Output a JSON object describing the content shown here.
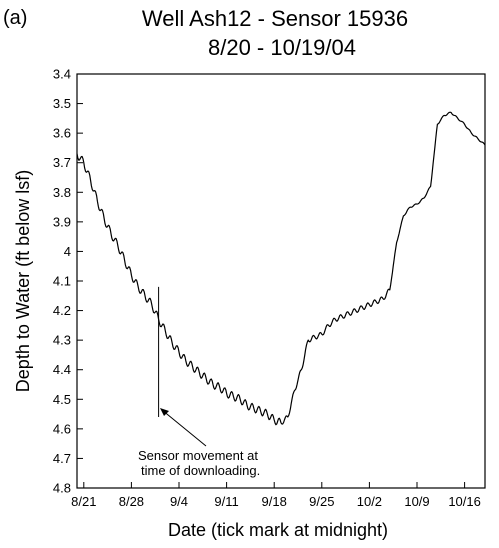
{
  "panel_label": "(a)",
  "chart_data": {
    "type": "line",
    "title": "Well Ash12 - Sensor 15936",
    "subtitle": "8/20 - 10/19/04",
    "xlabel": "Date (tick mark at midnight)",
    "ylabel": "Depth to Water (ft below lsf)",
    "y_axis_inverted": true,
    "ylim": [
      3.4,
      4.8
    ],
    "y_ticks": [
      3.4,
      3.5,
      3.6,
      3.7,
      3.8,
      3.9,
      4,
      4.1,
      4.2,
      4.3,
      4.4,
      4.5,
      4.6,
      4.7,
      4.8
    ],
    "y_tick_labels": [
      "3.4",
      "3.5",
      "3.6",
      "3.7",
      "3.8",
      "3.9",
      "4",
      "4.1",
      "4.2",
      "4.3",
      "4.4",
      "4.5",
      "4.6",
      "4.7",
      "4.8"
    ],
    "xlim": [
      "2004-08-20",
      "2004-10-19"
    ],
    "x_ticks": [
      "2004-08-21",
      "2004-08-28",
      "2004-09-04",
      "2004-09-11",
      "2004-09-18",
      "2004-09-25",
      "2004-10-02",
      "2004-10-09",
      "2004-10-16"
    ],
    "x_tick_labels": [
      "8/21",
      "8/28",
      "9/4",
      "9/11",
      "9/18",
      "9/25",
      "10/2",
      "10/9",
      "10/16"
    ],
    "grid": false,
    "series": [
      {
        "line_color": "#000000",
        "x": [
          "2004-08-20",
          "2004-08-21",
          "2004-08-22",
          "2004-08-23",
          "2004-08-24",
          "2004-08-25",
          "2004-08-26",
          "2004-08-27",
          "2004-08-28",
          "2004-08-29",
          "2004-08-30",
          "2004-08-31",
          "2004-09-01",
          "2004-09-02",
          "2004-09-03",
          "2004-09-04",
          "2004-09-05",
          "2004-09-06",
          "2004-09-07",
          "2004-09-08",
          "2004-09-09",
          "2004-09-10",
          "2004-09-11",
          "2004-09-12",
          "2004-09-13",
          "2004-09-14",
          "2004-09-15",
          "2004-09-16",
          "2004-09-17",
          "2004-09-18",
          "2004-09-19",
          "2004-09-20",
          "2004-09-21",
          "2004-09-22",
          "2004-09-23",
          "2004-09-24",
          "2004-09-25",
          "2004-09-26",
          "2004-09-27",
          "2004-09-28",
          "2004-09-29",
          "2004-09-30",
          "2004-10-01",
          "2004-10-02",
          "2004-10-03",
          "2004-10-04",
          "2004-10-05",
          "2004-10-06",
          "2004-10-07",
          "2004-10-08",
          "2004-10-09",
          "2004-10-10",
          "2004-10-11",
          "2004-10-12",
          "2004-10-13",
          "2004-10-14",
          "2004-10-15",
          "2004-10-16",
          "2004-10-17",
          "2004-10-18",
          "2004-10-19"
        ],
        "y": [
          3.67,
          3.7,
          3.76,
          3.83,
          3.89,
          3.94,
          3.98,
          4.03,
          4.08,
          4.12,
          4.15,
          4.18,
          4.23,
          4.27,
          4.31,
          4.34,
          4.37,
          4.39,
          4.41,
          4.43,
          4.45,
          4.46,
          4.48,
          4.49,
          4.5,
          4.52,
          4.53,
          4.54,
          4.55,
          4.57,
          4.58,
          4.56,
          4.47,
          4.4,
          4.3,
          4.29,
          4.28,
          4.25,
          4.23,
          4.22,
          4.21,
          4.2,
          4.19,
          4.18,
          4.17,
          4.16,
          4.13,
          3.97,
          3.88,
          3.85,
          3.84,
          3.82,
          3.78,
          3.57,
          3.54,
          3.53,
          3.55,
          3.57,
          3.6,
          3.62,
          3.64
        ]
      }
    ],
    "annotations": [
      {
        "text": "Sensor movement at",
        "points_to": {
          "x": "2004-09-01",
          "y": 4.57
        }
      },
      {
        "text": "time of downloading."
      }
    ],
    "vertical_marker": {
      "x": "2004-09-01",
      "y_from": 4.12,
      "y_to": 4.56
    }
  }
}
